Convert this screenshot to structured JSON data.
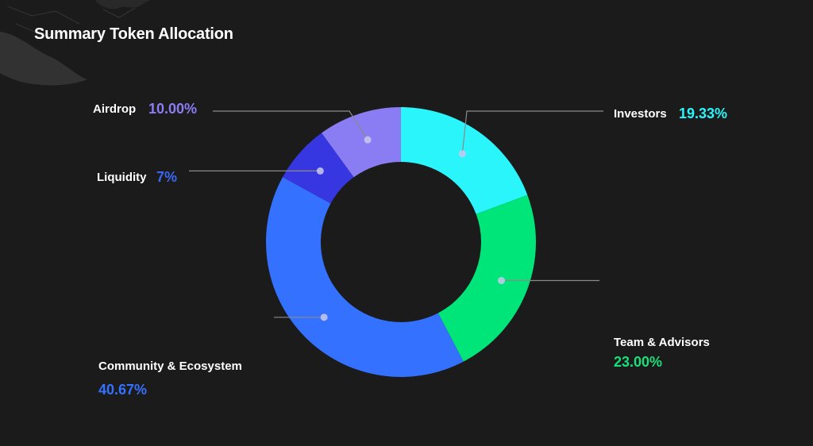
{
  "title": "Summary Token Allocation",
  "chart_data": {
    "type": "pie",
    "style": "donut",
    "title": "Summary Token Allocation",
    "start_at": "12 o'clock",
    "direction": "clockwise",
    "slices": [
      {
        "label": "Investors",
        "value": 19.33,
        "value_label": "19.33%",
        "color": "#2af5fb",
        "label_color": "#2af5fb"
      },
      {
        "label": "Team & Advisors",
        "value": 23.0,
        "value_label": "23.00%",
        "color": "#00e57a",
        "label_color": "#19df7a"
      },
      {
        "label": "Community & Ecosystem",
        "value": 40.67,
        "value_label": "40.67%",
        "color": "#3571ff",
        "label_color": "#3571ff"
      },
      {
        "label": "Liquidity",
        "value": 7,
        "value_label": "7%",
        "color": "#3637e0",
        "label_color": "#3b67f5"
      },
      {
        "label": "Airdrop",
        "value": 10.0,
        "value_label": "10.00%",
        "color": "#8a7df4",
        "label_color": "#8a7df4"
      }
    ]
  },
  "colors": {
    "background": "#1b1b1b",
    "leader_line": "#8a8a8a",
    "marker_dot": "#c9c9ee",
    "title": "#ffffff"
  }
}
